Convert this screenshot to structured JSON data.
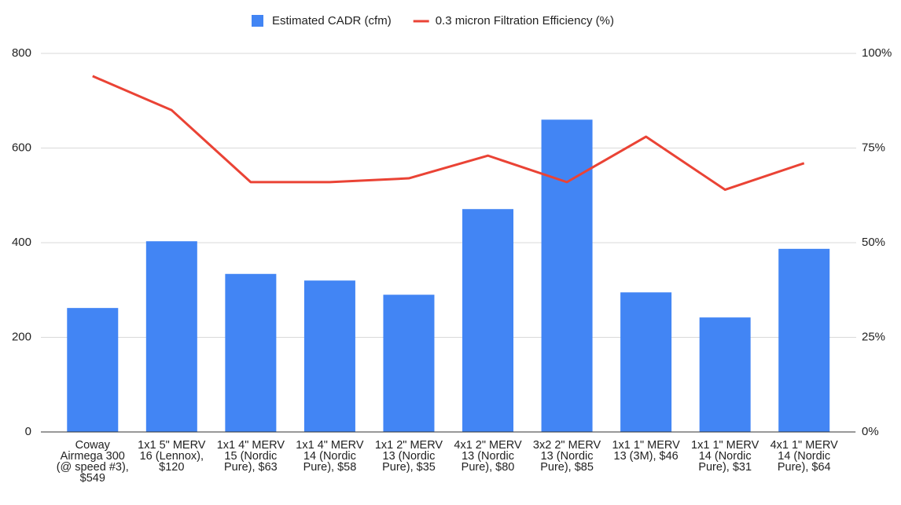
{
  "chart_data": {
    "type": "bar_line",
    "categories": [
      "Coway Airmega 300 (@ speed #3), $549",
      "1x1 5\" MERV 16 (Lennox), $120",
      "1x1 4\" MERV 15 (Nordic Pure), $63",
      "1x1 4\" MERV 14 (Nordic Pure), $58",
      "1x1 2\" MERV 13 (Nordic Pure), $35",
      "4x1 2\" MERV 13 (Nordic Pure), $80",
      "3x2 2\" MERV 13 (Nordic Pure), $85",
      "1x1 1\" MERV 13 (3M), $46",
      "1x1 1\" MERV 14 (Nordic Pure), $31",
      "4x1 1\" MERV 14 (Nordic Pure), $64"
    ],
    "series": [
      {
        "name": "Estimated CADR (cfm)",
        "color": "#4285f4",
        "type": "bar",
        "values": [
          262,
          403,
          334,
          320,
          290,
          471,
          660,
          295,
          242,
          387
        ]
      },
      {
        "name": "0.3 micron Filtration Efficiency (%)",
        "color": "#ea4335",
        "type": "line",
        "axis": "y2",
        "values": [
          94,
          85,
          66,
          66,
          67,
          73,
          66,
          78,
          64,
          71
        ]
      }
    ],
    "ylim": [
      0,
      800
    ],
    "yticks": [
      0,
      200,
      400,
      600,
      800
    ],
    "y2lim": [
      0,
      100
    ],
    "y2ticks": [
      {
        "value": 0,
        "label": "0%"
      },
      {
        "value": 25,
        "label": "25%"
      },
      {
        "value": 50,
        "label": "50%"
      },
      {
        "value": 75,
        "label": "75%"
      },
      {
        "value": 100,
        "label": "100%"
      }
    ],
    "grid": true,
    "legend": "top"
  }
}
